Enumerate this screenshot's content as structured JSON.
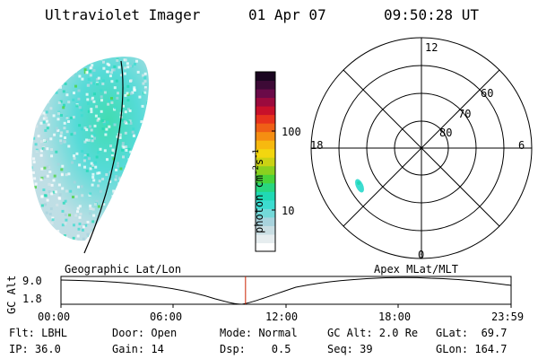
{
  "header": {
    "instrument": "Ultraviolet Imager",
    "date": "01 Apr 07",
    "time": "09:50:28 UT"
  },
  "colorbar": {
    "label": "photon cm",
    "sup1": "-2",
    "mid": "s",
    "sup2": "-1",
    "ticks": [
      "100",
      "10"
    ],
    "colors": [
      "#ffffff",
      "#e6edef",
      "#c9dee3",
      "#a8d3dd",
      "#73d9d9",
      "#3cdcd0",
      "#20d9b4",
      "#28d680",
      "#49d33a",
      "#8ad01f",
      "#cbd214",
      "#f3d60f",
      "#f7b90f",
      "#f58e12",
      "#ef5f16",
      "#e7321d",
      "#c8102a",
      "#9b0a3d",
      "#6a0a48",
      "#3d0a36",
      "#1a0520"
    ]
  },
  "polar": {
    "mlt_labels": [
      "12",
      "18",
      "6",
      "0"
    ],
    "lat_labels": [
      "60",
      "70",
      "80"
    ]
  },
  "timeline": {
    "left_label": "Geographic Lat/Lon",
    "right_label": "Apex MLat/MLT",
    "axis_label": "GC Alt",
    "y_ticks": [
      "9.0",
      "1.8"
    ],
    "x_ticks": [
      "00:00",
      "06:00",
      "12:00",
      "18:00",
      "23:59"
    ],
    "current_time_fraction": 0.41
  },
  "info": {
    "flt": "Flt: LBHL",
    "door": "Door: Open",
    "mode": "Mode: Normal",
    "gc_alt": "GC Alt: 2.0 Re",
    "glat": "GLat:  69.7",
    "ip": "IP: 36.0",
    "gain": "Gain: 14",
    "dsp": "Dsp:    0.5",
    "seq": "Seq: 39",
    "glon": "GLon: 164.7"
  }
}
